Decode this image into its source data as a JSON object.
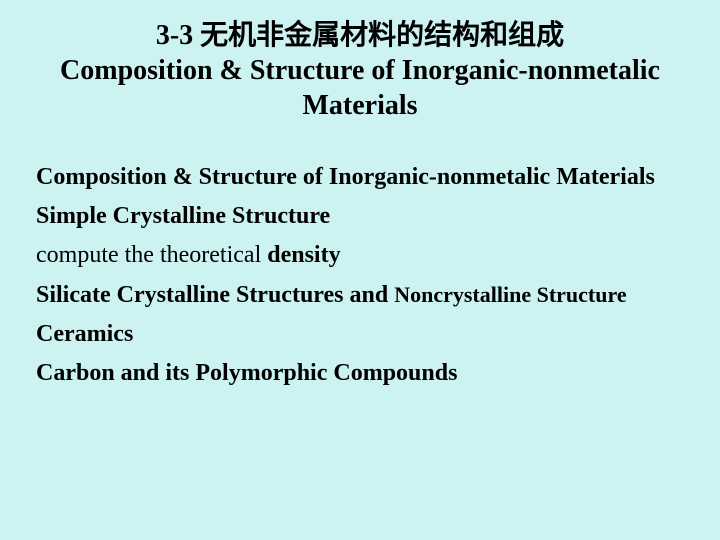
{
  "background_color": "#ccf2f2",
  "text_color": "#000000",
  "title": {
    "line1": "3-3  无机非金属材料的结构和组成",
    "line2": "Composition & Structure of Inorganic-nonmetalic Materials",
    "fontsize": 28,
    "weight": "bold",
    "align": "center"
  },
  "content": {
    "fontsize": 24,
    "items": [
      {
        "runs": [
          {
            "text": "Composition & Structure of Inorganic-nonmetalic Materials",
            "bold": true
          }
        ]
      },
      {
        "runs": [
          {
            "text": "Simple Crystalline Structure",
            "bold": true
          }
        ]
      },
      {
        "runs": [
          {
            "text": "compute the theoretical ",
            "bold": false
          },
          {
            "text": "density",
            "bold": true
          }
        ]
      },
      {
        "runs": [
          {
            "text": "Silicate Crystalline Structures and ",
            "bold": true
          },
          {
            "text": "Noncrystalline Structure",
            "bold": true,
            "smaller": true
          }
        ]
      },
      {
        "runs": [
          {
            "text": "Ceramics",
            "bold": true
          }
        ]
      },
      {
        "runs": [
          {
            "text": "Carbon and its Polymorphic Compounds",
            "bold": true
          }
        ]
      }
    ]
  }
}
